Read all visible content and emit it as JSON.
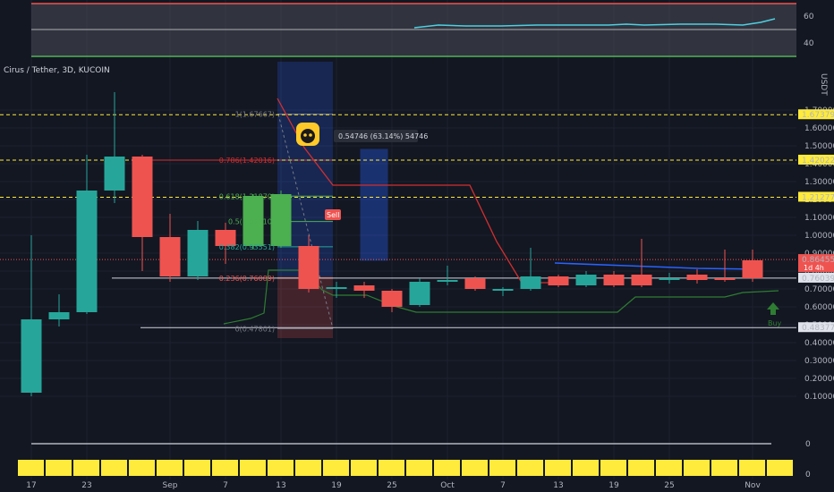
{
  "header": {
    "symbol": "Cirus / Tether, 3D, KUCOIN",
    "currency": "USDT"
  },
  "colors": {
    "background": "#131722",
    "up": "#26a69a",
    "down": "#ef5350",
    "green_bar": "#4caf50",
    "yellow_dash": "#ffeb3b",
    "red_line": "#d32f2f",
    "blue_line": "#2962ff",
    "rsi_line": "#4dd0e1",
    "signal_green": "#2e7d32",
    "bottom_strip": "#ffeb3b"
  },
  "rsi": {
    "levels": [
      "60",
      "40"
    ]
  },
  "price_axis": {
    "ticks": [
      "1.70000",
      "1.60000",
      "1.50000",
      "1.40000",
      "1.30000",
      "1.20000",
      "1.10000",
      "1.00000",
      "0.90000",
      "0.80000",
      "0.70000",
      "0.60000",
      "0.50000",
      "0.40000",
      "0.30000",
      "0.20000",
      "0.10000"
    ],
    "tags": [
      {
        "label": "1.67379",
        "price": 1.67379,
        "style": "yellow"
      },
      {
        "label": "1.42022",
        "price": 1.42022,
        "style": "yellow"
      },
      {
        "label": "1.21277",
        "price": 1.21277,
        "style": "yellow"
      },
      {
        "label": "0.86455",
        "price": 0.86455,
        "style": "red",
        "sub": "1d 4h"
      },
      {
        "label": "0.76039",
        "price": 0.76039,
        "style": "white"
      },
      {
        "label": "0.48377",
        "price": 0.48377,
        "style": "white"
      }
    ],
    "lower_ticks": [
      "0",
      "0"
    ]
  },
  "x_axis": {
    "labels": [
      {
        "text": "17",
        "idx": 0
      },
      {
        "text": "23",
        "idx": 2
      },
      {
        "text": "Sep",
        "idx": 5
      },
      {
        "text": "7",
        "idx": 7
      },
      {
        "text": "13",
        "idx": 9
      },
      {
        "text": "19",
        "idx": 11
      },
      {
        "text": "25",
        "idx": 13
      },
      {
        "text": "Oct",
        "idx": 15
      },
      {
        "text": "7",
        "idx": 17
      },
      {
        "text": "13",
        "idx": 19
      },
      {
        "text": "19",
        "idx": 21
      },
      {
        "text": "25",
        "idx": 23
      },
      {
        "text": "Nov",
        "idx": 26
      }
    ]
  },
  "fib": {
    "levels": [
      {
        "label": "1(1.67667)",
        "price": 1.67667
      },
      {
        "label": "0.786(1.42016)",
        "price": 1.42016
      },
      {
        "label": "0.618(1.21870)",
        "price": 1.2187
      },
      {
        "label": "0.5(1.07710)",
        "price": 1.0771
      },
      {
        "label": "0.382(0.93551)",
        "price": 0.93551
      },
      {
        "label": "0.236(0.76089)",
        "price": 0.76089
      },
      {
        "label": "0(0.47801)",
        "price": 0.47801
      }
    ]
  },
  "annotations": {
    "measure_label": "0.54746 (63.14%) 54746",
    "sell_label": "Sell",
    "buy_label": "Buy"
  },
  "chart_data": {
    "type": "candlestick",
    "title": "Cirus / Tether, 3D, KUCOIN",
    "ylabel": "USDT",
    "ylim": [
      0,
      1.75
    ],
    "candles": [
      {
        "o": 0.12,
        "h": 1.0,
        "l": 0.1,
        "c": 0.53
      },
      {
        "o": 0.53,
        "h": 0.67,
        "l": 0.49,
        "c": 0.57
      },
      {
        "o": 0.57,
        "h": 1.45,
        "l": 0.56,
        "c": 1.25
      },
      {
        "o": 1.25,
        "h": 1.8,
        "l": 1.18,
        "c": 1.44
      },
      {
        "o": 1.44,
        "h": 1.45,
        "l": 0.8,
        "c": 0.99
      },
      {
        "o": 0.99,
        "h": 1.12,
        "l": 0.74,
        "c": 0.77
      },
      {
        "o": 0.77,
        "h": 1.08,
        "l": 0.75,
        "c": 1.03
      },
      {
        "o": 1.03,
        "h": 1.07,
        "l": 0.84,
        "c": 0.94
      },
      {
        "o": 0.94,
        "h": 1.23,
        "l": 0.92,
        "c": 1.22
      },
      {
        "o": 0.94,
        "h": 1.25,
        "l": 0.93,
        "c": 1.23
      },
      {
        "o": 0.94,
        "h": 1.0,
        "l": 0.68,
        "c": 0.7
      },
      {
        "o": 0.7,
        "h": 0.74,
        "l": 0.65,
        "c": 0.71
      },
      {
        "o": 0.72,
        "h": 0.74,
        "l": 0.65,
        "c": 0.69
      },
      {
        "o": 0.69,
        "h": 0.7,
        "l": 0.57,
        "c": 0.6
      },
      {
        "o": 0.61,
        "h": 0.76,
        "l": 0.6,
        "c": 0.74
      },
      {
        "o": 0.74,
        "h": 0.83,
        "l": 0.72,
        "c": 0.75
      },
      {
        "o": 0.76,
        "h": 0.77,
        "l": 0.69,
        "c": 0.7
      },
      {
        "o": 0.7,
        "h": 0.71,
        "l": 0.66,
        "c": 0.7
      },
      {
        "o": 0.7,
        "h": 0.93,
        "l": 0.69,
        "c": 0.77
      },
      {
        "o": 0.77,
        "h": 0.78,
        "l": 0.71,
        "c": 0.72
      },
      {
        "o": 0.72,
        "h": 0.8,
        "l": 0.71,
        "c": 0.78
      },
      {
        "o": 0.78,
        "h": 0.8,
        "l": 0.71,
        "c": 0.72
      },
      {
        "o": 0.78,
        "h": 0.98,
        "l": 0.71,
        "c": 0.72
      },
      {
        "o": 0.76,
        "h": 0.79,
        "l": 0.73,
        "c": 0.76
      },
      {
        "o": 0.78,
        "h": 0.81,
        "l": 0.73,
        "c": 0.75
      },
      {
        "o": 0.76,
        "h": 0.92,
        "l": 0.74,
        "c": 0.75
      },
      {
        "o": 0.86,
        "h": 0.92,
        "l": 0.74,
        "c": 0.76
      }
    ]
  }
}
